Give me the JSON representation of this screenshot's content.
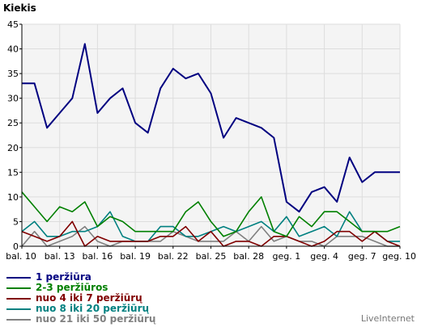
{
  "chart_data": {
    "type": "line",
    "title": "",
    "ylabel": "Kiekis",
    "xlabel": "",
    "ylim": [
      0,
      45
    ],
    "yticks": [
      0,
      5,
      10,
      15,
      20,
      25,
      30,
      35,
      40,
      45
    ],
    "grid": true,
    "legend_position": "bottom-left",
    "categories": [
      "bal. 10",
      "bal. 11",
      "bal. 12",
      "bal. 13",
      "bal. 14",
      "bal. 15",
      "bal. 16",
      "bal. 17",
      "bal. 18",
      "bal. 19",
      "bal. 20",
      "bal. 21",
      "bal. 22",
      "bal. 23",
      "bal. 24",
      "bal. 25",
      "bal. 26",
      "bal. 27",
      "bal. 28",
      "bal. 29",
      "bal. 30",
      "geg. 1",
      "geg. 2",
      "geg. 3",
      "geg. 4",
      "geg. 5",
      "geg. 6",
      "geg. 7",
      "geg. 8",
      "geg. 9",
      "geg. 10"
    ],
    "tick_labels": [
      {
        "index": 0,
        "label": "bal. 10"
      },
      {
        "index": 3,
        "label": "bal. 13"
      },
      {
        "index": 6,
        "label": "bal. 16"
      },
      {
        "index": 9,
        "label": "bal. 19"
      },
      {
        "index": 12,
        "label": "bal. 22"
      },
      {
        "index": 15,
        "label": "bal. 25"
      },
      {
        "index": 18,
        "label": "bal. 28"
      },
      {
        "index": 21,
        "label": "geg. 1"
      },
      {
        "index": 24,
        "label": "geg. 4"
      },
      {
        "index": 27,
        "label": "geg. 7"
      },
      {
        "index": 30,
        "label": "geg. 10"
      }
    ],
    "series": [
      {
        "name": "1 peržiūra",
        "color": "#000080",
        "values": [
          33,
          33,
          24,
          27,
          30,
          41,
          27,
          30,
          32,
          25,
          23,
          32,
          36,
          34,
          35,
          31,
          22,
          26,
          25,
          24,
          22,
          9,
          7,
          11,
          12,
          9,
          18,
          13,
          15,
          15,
          15
        ]
      },
      {
        "name": "2-3 peržiūros",
        "color": "#008000",
        "values": [
          11,
          8,
          5,
          8,
          7,
          9,
          4,
          6,
          5,
          3,
          3,
          3,
          3,
          7,
          9,
          5,
          2,
          3,
          7,
          10,
          3,
          2,
          6,
          4,
          7,
          7,
          5,
          3,
          3,
          3,
          4
        ]
      },
      {
        "name": "nuo 4 iki 7 peržiūrų",
        "color": "#800000",
        "values": [
          3,
          2,
          1,
          2,
          5,
          0,
          2,
          1,
          1,
          1,
          1,
          2,
          2,
          4,
          1,
          3,
          0,
          1,
          1,
          0,
          2,
          2,
          1,
          0,
          1,
          3,
          3,
          1,
          3,
          1,
          0
        ]
      },
      {
        "name": "nuo 8 iki 20 peržiūrų",
        "color": "#008080",
        "values": [
          3,
          5,
          2,
          2,
          3,
          3,
          4,
          7,
          2,
          1,
          1,
          4,
          4,
          2,
          2,
          3,
          4,
          3,
          4,
          5,
          3,
          6,
          2,
          3,
          4,
          2,
          7,
          3,
          3,
          1,
          1
        ]
      },
      {
        "name": "nuo 21 iki 50 peržiūrų",
        "color": "#808080",
        "values": [
          0,
          3,
          0,
          1,
          2,
          4,
          1,
          0,
          1,
          1,
          1,
          1,
          3,
          2,
          1,
          1,
          1,
          3,
          1,
          4,
          1,
          2,
          1,
          1,
          0,
          2,
          2,
          2,
          1,
          0,
          0
        ]
      }
    ]
  },
  "legend": {
    "items": [
      {
        "label": "1 peržiūra",
        "color": "#000080"
      },
      {
        "label": "2-3 peržiūros",
        "color": "#008000"
      },
      {
        "label": "nuo 4 iki 7 peržiūrų",
        "color": "#800000"
      },
      {
        "label": "nuo 8 iki 20 peržiūrų",
        "color": "#008080"
      },
      {
        "label": "nuo 21 iki 50 peržiūrų",
        "color": "#808080"
      }
    ]
  },
  "branding": {
    "text": "LiveInternet"
  }
}
